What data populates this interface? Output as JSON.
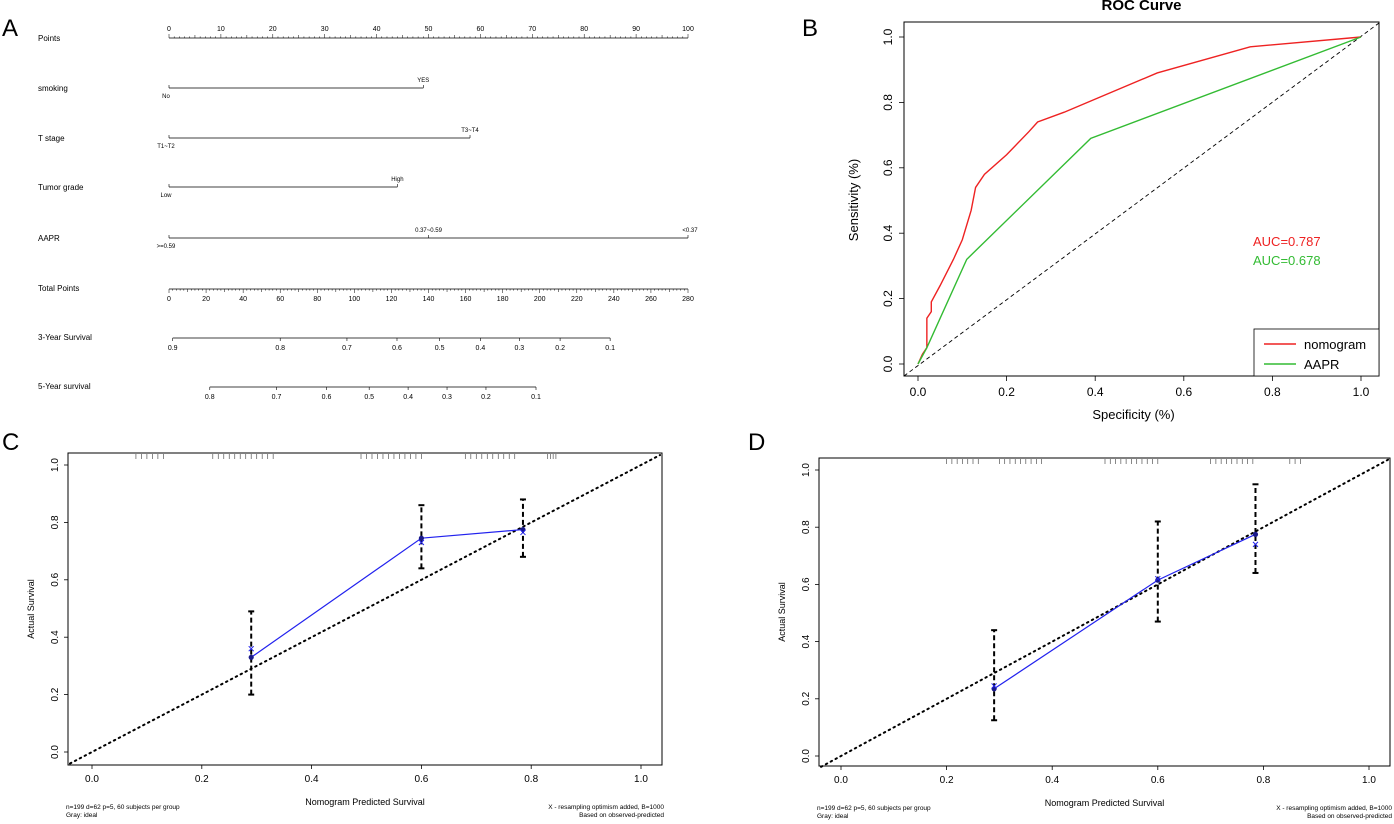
{
  "panels": {
    "A": "A",
    "B": "B",
    "C": "C",
    "D": "D"
  },
  "chart_data": [
    {
      "type": "nomogram",
      "panel": "A",
      "points_axis": {
        "label": "Points",
        "ticks": [
          "0",
          "10",
          "20",
          "30",
          "40",
          "50",
          "60",
          "70",
          "80",
          "90",
          "100"
        ]
      },
      "variables": [
        {
          "label": "smoking",
          "levels": [
            {
              "text": "No",
              "points": 0
            },
            {
              "text": "YES",
              "points": 49
            }
          ]
        },
        {
          "label": "T stage",
          "levels": [
            {
              "text": "T1~T2",
              "points": 0
            },
            {
              "text": "T3~T4",
              "points": 58
            }
          ]
        },
        {
          "label": "Tumor grade",
          "levels": [
            {
              "text": "Low",
              "points": 0
            },
            {
              "text": "High",
              "points": 44
            }
          ]
        },
        {
          "label": "AAPR",
          "levels": [
            {
              "text": ">=0.59",
              "points": 0
            },
            {
              "text": "0.37~0.59",
              "points": 50
            },
            {
              "text": "<0.37",
              "points": 100
            }
          ]
        }
      ],
      "total_points_axis": {
        "label": "Total Points",
        "ticks": [
          "0",
          "20",
          "40",
          "60",
          "80",
          "100",
          "120",
          "140",
          "160",
          "180",
          "200",
          "220",
          "240",
          "260",
          "280"
        ]
      },
      "survival_axes": [
        {
          "label": "3-Year Survival",
          "ticks": [
            {
              "text": "0.9",
              "total_points": 2
            },
            {
              "text": "0.8",
              "total_points": 60
            },
            {
              "text": "0.7",
              "total_points": 96
            },
            {
              "text": "0.6",
              "total_points": 123
            },
            {
              "text": "0.5",
              "total_points": 146
            },
            {
              "text": "0.4",
              "total_points": 168
            },
            {
              "text": "0.3",
              "total_points": 189
            },
            {
              "text": "0.2",
              "total_points": 211
            },
            {
              "text": "0.1",
              "total_points": 238
            }
          ]
        },
        {
          "label": "5-Year survival",
          "ticks": [
            {
              "text": "0.8",
              "total_points": 22
            },
            {
              "text": "0.7",
              "total_points": 58
            },
            {
              "text": "0.6",
              "total_points": 85
            },
            {
              "text": "0.5",
              "total_points": 108
            },
            {
              "text": "0.4",
              "total_points": 129
            },
            {
              "text": "0.3",
              "total_points": 150
            },
            {
              "text": "0.2",
              "total_points": 171
            },
            {
              "text": "0.1",
              "total_points": 198
            }
          ]
        }
      ]
    },
    {
      "type": "line",
      "panel": "B",
      "title": "ROC Curve",
      "xlabel": "Specificity (%)",
      "ylabel": "Sensitivity (%)",
      "xlim": [
        0,
        1
      ],
      "ylim": [
        0,
        1
      ],
      "ticks": [
        "0.0",
        "0.2",
        "0.4",
        "0.6",
        "0.8",
        "1.0"
      ],
      "series": [
        {
          "name": "nomogram",
          "color": "#ee2222",
          "x": [
            0,
            0.01,
            0.02,
            0.02,
            0.03,
            0.03,
            0.05,
            0.08,
            0.1,
            0.12,
            0.13,
            0.15,
            0.2,
            0.25,
            0.27,
            0.33,
            0.4,
            0.54,
            0.75,
            1.0
          ],
          "y": [
            0,
            0.03,
            0.05,
            0.14,
            0.16,
            0.19,
            0.24,
            0.32,
            0.38,
            0.47,
            0.54,
            0.58,
            0.64,
            0.71,
            0.74,
            0.77,
            0.81,
            0.89,
            0.97,
            1.0
          ]
        },
        {
          "name": "AAPR",
          "color": "#33bb33",
          "x": [
            0,
            0.02,
            0.11,
            0.39,
            1.0
          ],
          "y": [
            0,
            0.05,
            0.32,
            0.69,
            1.0
          ]
        }
      ],
      "diagonal": true,
      "annotations": [
        "AUC=0.787",
        "AUC=0.678"
      ],
      "legend": "bottom-right"
    },
    {
      "type": "calibration",
      "panel": "C",
      "xlabel": "Nomogram Predicted Survival",
      "ylabel": "Actual Survival",
      "xlim": [
        0,
        1
      ],
      "ylim": [
        0,
        1
      ],
      "ticks": [
        "0.0",
        "0.2",
        "0.4",
        "0.6",
        "0.8",
        "1.0"
      ],
      "points": [
        {
          "x": 0.29,
          "y": 0.33,
          "x_mark": 0.36,
          "lo": 0.2,
          "hi": 0.49
        },
        {
          "x": 0.6,
          "y": 0.745,
          "x_mark": 0.73,
          "lo": 0.64,
          "hi": 0.86
        },
        {
          "x": 0.785,
          "y": 0.775,
          "x_mark": 0.765,
          "lo": 0.68,
          "hi": 0.88
        }
      ],
      "rug": [
        0.08,
        0.09,
        0.1,
        0.11,
        0.12,
        0.13,
        0.22,
        0.23,
        0.24,
        0.25,
        0.26,
        0.27,
        0.28,
        0.29,
        0.3,
        0.31,
        0.32,
        0.33,
        0.49,
        0.5,
        0.51,
        0.52,
        0.53,
        0.54,
        0.55,
        0.56,
        0.57,
        0.58,
        0.59,
        0.6,
        0.68,
        0.69,
        0.7,
        0.71,
        0.72,
        0.73,
        0.74,
        0.75,
        0.76,
        0.77,
        0.83,
        0.835,
        0.84,
        0.845
      ],
      "footnote_left": [
        "n=199 d=62 p=5, 60 subjects per group",
        "Gray: ideal"
      ],
      "footnote_right": [
        "X - resampling optimism added, B=1000",
        "Based on observed-predicted"
      ]
    },
    {
      "type": "calibration",
      "panel": "D",
      "xlabel": "Nomogram Predicted Survival",
      "ylabel": "Actual Survival",
      "xlim": [
        0,
        1
      ],
      "ylim": [
        0,
        1
      ],
      "ticks": [
        "0.0",
        "0.2",
        "0.4",
        "0.6",
        "0.8",
        "1.0"
      ],
      "points": [
        {
          "x": 0.29,
          "y": 0.235,
          "x_mark": 0.245,
          "lo": 0.125,
          "hi": 0.44
        },
        {
          "x": 0.6,
          "y": 0.615,
          "x_mark": 0.62,
          "lo": 0.47,
          "hi": 0.82
        },
        {
          "x": 0.785,
          "y": 0.775,
          "x_mark": 0.74,
          "lo": 0.64,
          "hi": 0.95
        }
      ],
      "rug": [
        0.2,
        0.21,
        0.22,
        0.23,
        0.24,
        0.25,
        0.26,
        0.3,
        0.31,
        0.32,
        0.33,
        0.34,
        0.35,
        0.36,
        0.37,
        0.38,
        0.5,
        0.51,
        0.52,
        0.53,
        0.54,
        0.55,
        0.56,
        0.57,
        0.58,
        0.59,
        0.6,
        0.7,
        0.71,
        0.72,
        0.73,
        0.74,
        0.75,
        0.76,
        0.77,
        0.78,
        0.85,
        0.86,
        0.87
      ],
      "footnote_left": [
        "n=199 d=62 p=5, 60 subjects per group",
        "Gray: ideal"
      ],
      "footnote_right": [
        "X - resampling optimism added, B=1000",
        "Based on observed-predicted"
      ]
    }
  ]
}
